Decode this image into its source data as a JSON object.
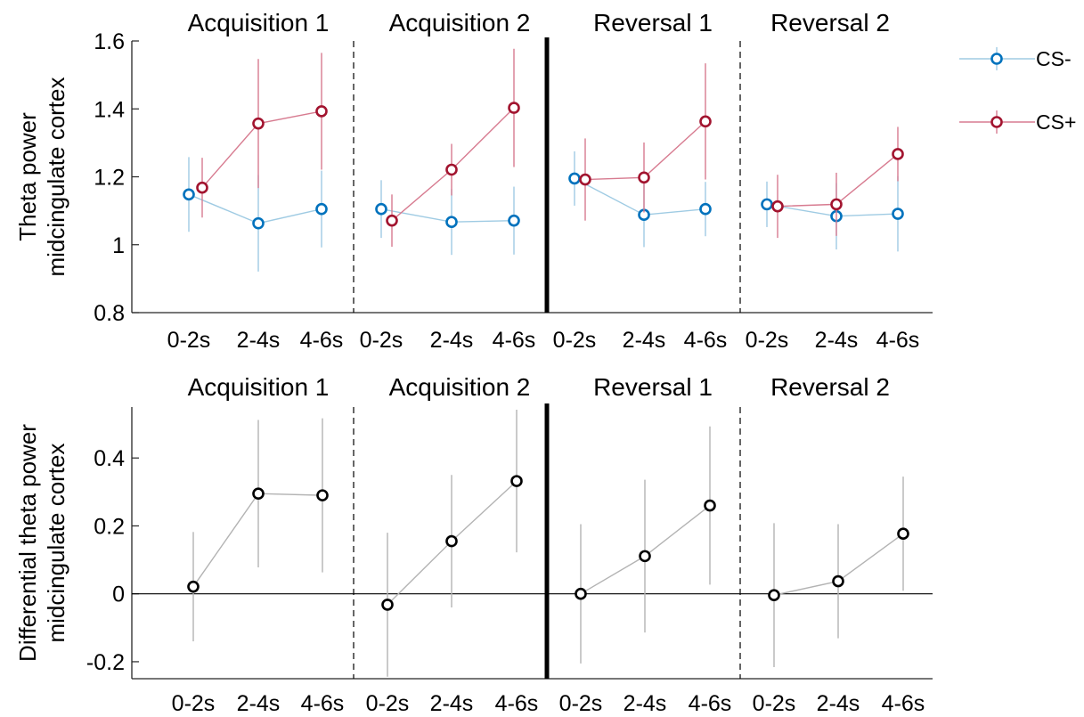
{
  "chart_data": [
    {
      "type": "line",
      "ylabel": [
        "Theta power",
        "midcingulate cortex"
      ],
      "ylim": [
        0.8,
        1.6
      ],
      "yticks": [
        0.8,
        1,
        1.2,
        1.4,
        1.6
      ],
      "ytick_labels": [
        "0.8",
        "1",
        "1.2",
        "1.4",
        "1.6"
      ],
      "reference_line": null,
      "phases": [
        {
          "title": "Acquisition 1",
          "categories": [
            "0-2s",
            "2-4s",
            "4-6s"
          ],
          "series": [
            {
              "name": "CS-",
              "values": [
                1.148,
                1.063,
                1.105
              ],
              "err": [
                0.11,
                0.142,
                0.113
              ]
            },
            {
              "name": "CS+",
              "values": [
                1.168,
                1.357,
                1.393
              ],
              "err": [
                0.088,
                0.19,
                0.172
              ]
            }
          ]
        },
        {
          "title": "Acquisition 2",
          "categories": [
            "0-2s",
            "2-4s",
            "4-6s"
          ],
          "series": [
            {
              "name": "CS-",
              "values": [
                1.105,
                1.067,
                1.071
              ],
              "err": [
                0.085,
                0.097,
                0.1
              ]
            },
            {
              "name": "CS+",
              "values": [
                1.071,
                1.221,
                1.403
              ],
              "err": [
                0.077,
                0.076,
                0.174
              ]
            }
          ]
        },
        {
          "title": "Reversal 1",
          "categories": [
            "0-2s",
            "2-4s",
            "4-6s"
          ],
          "series": [
            {
              "name": "CS-",
              "values": [
                1.195,
                1.088,
                1.105
              ],
              "err": [
                0.08,
                0.095,
                0.08
              ]
            },
            {
              "name": "CS+",
              "values": [
                1.192,
                1.198,
                1.363
              ],
              "err": [
                0.121,
                0.103,
                0.171
              ]
            }
          ]
        },
        {
          "title": "Reversal 2",
          "categories": [
            "0-2s",
            "2-4s",
            "4-6s"
          ],
          "series": [
            {
              "name": "CS-",
              "values": [
                1.119,
                1.084,
                1.091
              ],
              "err": [
                0.067,
                0.098,
                0.111
              ]
            },
            {
              "name": "CS+",
              "values": [
                1.113,
                1.119,
                1.267
              ],
              "err": [
                0.093,
                0.093,
                0.08
              ]
            }
          ]
        }
      ]
    },
    {
      "type": "line",
      "ylabel": [
        "Differential theta power",
        "midcingulate cortex"
      ],
      "ylim": [
        -0.25,
        0.55
      ],
      "yticks": [
        -0.2,
        0,
        0.2,
        0.4
      ],
      "ytick_labels": [
        "-0.2",
        "0",
        "0.2",
        "0.4"
      ],
      "reference_line": 0,
      "phases": [
        {
          "title": "Acquisition 1",
          "categories": [
            "0-2s",
            "2-4s",
            "4-6s"
          ],
          "series": [
            {
              "values": [
                0.021,
                0.295,
                0.29
              ],
              "err": [
                0.161,
                0.217,
                0.227
              ]
            }
          ]
        },
        {
          "title": "Acquisition 2",
          "categories": [
            "0-2s",
            "2-4s",
            "4-6s"
          ],
          "series": [
            {
              "values": [
                -0.032,
                0.155,
                0.332
              ],
              "err": [
                0.212,
                0.195,
                0.21
              ]
            }
          ]
        },
        {
          "title": "Reversal 1",
          "categories": [
            "0-2s",
            "2-4s",
            "4-6s"
          ],
          "series": [
            {
              "values": [
                0.0,
                0.111,
                0.26
              ],
              "err": [
                0.205,
                0.225,
                0.233
              ]
            }
          ]
        },
        {
          "title": "Reversal 2",
          "categories": [
            "0-2s",
            "2-4s",
            "4-6s"
          ],
          "series": [
            {
              "values": [
                -0.004,
                0.037,
                0.177
              ],
              "err": [
                0.212,
                0.168,
                0.168
              ]
            }
          ]
        }
      ]
    }
  ],
  "legend": {
    "placement": "right",
    "entries": [
      {
        "label": "CS-",
        "line_color": "#9fcbe3",
        "marker_color": "#0072bd"
      },
      {
        "label": "CS+",
        "line_color": "#d77b90",
        "marker_color": "#a2142f"
      }
    ]
  },
  "colors": {
    "cs_minus_line": "#9fcbe3",
    "cs_minus_marker": "#0072bd",
    "cs_plus_line": "#d77b90",
    "cs_plus_marker": "#a2142f",
    "diff_line": "#b3b3b3",
    "diff_marker": "#000000"
  }
}
